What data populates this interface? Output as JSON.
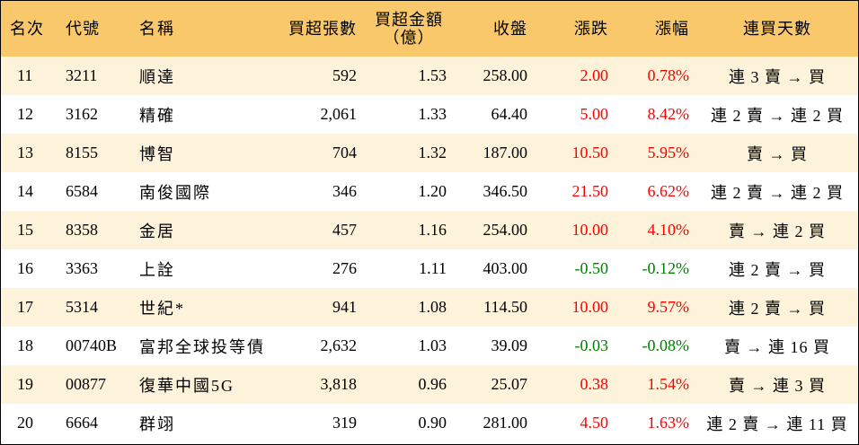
{
  "headers": {
    "rank": "名次",
    "code": "代號",
    "name": "名稱",
    "buy_lots": "買超張數",
    "buy_amount_line1": "買超金額",
    "buy_amount_line2": "（億）",
    "close": "收盤",
    "change": "漲跌",
    "change_pct": "漲幅",
    "streak": "連買天數"
  },
  "rows": [
    {
      "rank": "11",
      "code": "3211",
      "name": "順達",
      "buy_lots": "592",
      "amount": "1.53",
      "close": "258.00",
      "change": "2.00",
      "pct": "0.78%",
      "dir": "up",
      "streak": "連 3 賣 → 買"
    },
    {
      "rank": "12",
      "code": "3162",
      "name": "精確",
      "buy_lots": "2,061",
      "amount": "1.33",
      "close": "64.40",
      "change": "5.00",
      "pct": "8.42%",
      "dir": "up",
      "streak": "連 2 賣 → 連 2 買"
    },
    {
      "rank": "13",
      "code": "8155",
      "name": "博智",
      "buy_lots": "704",
      "amount": "1.32",
      "close": "187.00",
      "change": "10.50",
      "pct": "5.95%",
      "dir": "up",
      "streak": "賣 → 買"
    },
    {
      "rank": "14",
      "code": "6584",
      "name": "南俊國際",
      "buy_lots": "346",
      "amount": "1.20",
      "close": "346.50",
      "change": "21.50",
      "pct": "6.62%",
      "dir": "up",
      "streak": "連 2 賣 → 連 2 買"
    },
    {
      "rank": "15",
      "code": "8358",
      "name": "金居",
      "buy_lots": "457",
      "amount": "1.16",
      "close": "254.00",
      "change": "10.00",
      "pct": "4.10%",
      "dir": "up",
      "streak": "賣 → 連 2 買"
    },
    {
      "rank": "16",
      "code": "3363",
      "name": "上詮",
      "buy_lots": "276",
      "amount": "1.11",
      "close": "403.00",
      "change": "-0.50",
      "pct": "-0.12%",
      "dir": "down",
      "streak": "連 2 賣 → 買"
    },
    {
      "rank": "17",
      "code": "5314",
      "name": "世紀*",
      "buy_lots": "941",
      "amount": "1.08",
      "close": "114.50",
      "change": "10.00",
      "pct": "9.57%",
      "dir": "up",
      "streak": "連 2 賣 → 買"
    },
    {
      "rank": "18",
      "code": "00740B",
      "name": "富邦全球投等債",
      "buy_lots": "2,632",
      "amount": "1.03",
      "close": "39.09",
      "change": "-0.03",
      "pct": "-0.08%",
      "dir": "down",
      "streak": "賣 → 連 16 買"
    },
    {
      "rank": "19",
      "code": "00877",
      "name": "復華中國5G",
      "buy_lots": "3,818",
      "amount": "0.96",
      "close": "25.07",
      "change": "0.38",
      "pct": "1.54%",
      "dir": "up",
      "streak": "賣 → 連 3 買"
    },
    {
      "rank": "20",
      "code": "6664",
      "name": "群翊",
      "buy_lots": "319",
      "amount": "0.90",
      "close": "281.00",
      "change": "4.50",
      "pct": "1.63%",
      "dir": "up",
      "streak": "連 2 賣 → 連 11 買"
    }
  ],
  "colors": {
    "header_bg": "#f9c86a",
    "odd_row_bg": "#fdf2da",
    "even_row_bg": "#ffffff",
    "up": "#ff0000",
    "down": "#008000"
  }
}
